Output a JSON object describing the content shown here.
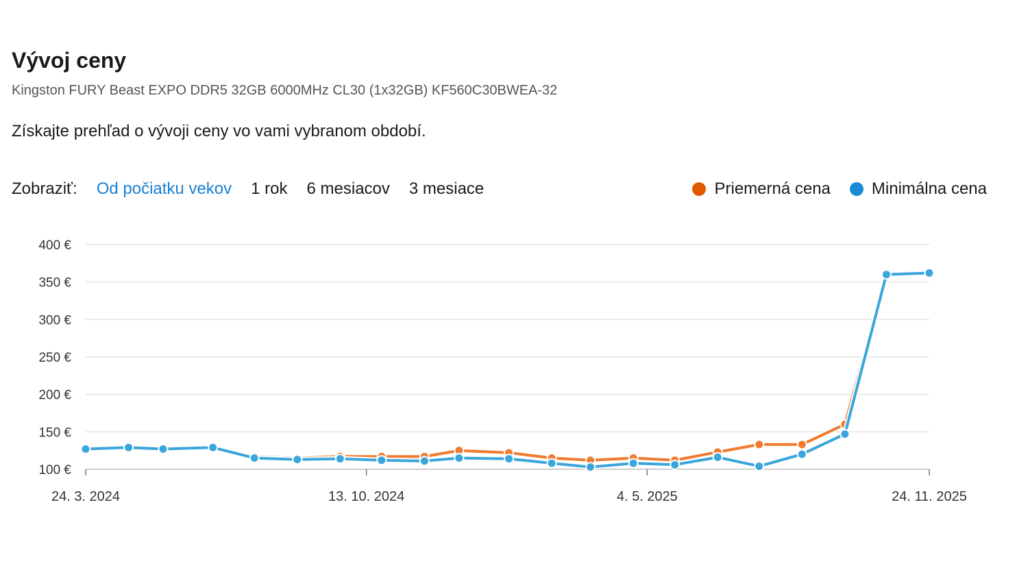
{
  "header": {
    "title": "Vývoj ceny",
    "product": "Kingston FURY Beast EXPO DDR5 32GB 6000MHz CL30 (1x32GB) KF560C30BWEA-32",
    "intro": "Získajte prehľad o vývoji ceny vo vami vybranom období."
  },
  "controls": {
    "label": "Zobraziť:",
    "options": [
      "Od počiatku vekov",
      "1 rok",
      "6 mesiacov",
      "3 mesiace"
    ],
    "active_index": 0
  },
  "legend": {
    "avg": "Priemerná cena",
    "min": "Minimálna cena"
  },
  "colors": {
    "avg": "#f07a2e",
    "min": "#3aa6db",
    "legend_avg": "#e05a00",
    "legend_min": "#1a8ad8",
    "active": "#1a7fd0"
  },
  "chart_data": {
    "type": "line",
    "x": [
      "2024-03-24",
      "2024-04-24",
      "2024-05-19",
      "2024-06-24",
      "2024-07-24",
      "2024-08-24",
      "2024-09-24",
      "2024-10-24",
      "2024-11-24",
      "2024-12-19",
      "2025-01-24",
      "2025-02-24",
      "2025-03-24",
      "2025-04-24",
      "2025-05-24",
      "2025-06-24",
      "2025-07-24",
      "2025-08-24",
      "2025-09-24",
      "2025-10-24",
      "2025-11-24"
    ],
    "series": [
      {
        "name": "Priemerná cena",
        "values": [
          127,
          128,
          127,
          129,
          117,
          115,
          117,
          117,
          117,
          125,
          122,
          115,
          112,
          115,
          112,
          123,
          133,
          133,
          160,
          360,
          362
        ]
      },
      {
        "name": "Minimálna cena",
        "values": [
          127,
          129,
          127,
          129,
          115,
          113,
          114,
          112,
          111,
          115,
          114,
          108,
          103,
          108,
          106,
          116,
          104,
          120,
          147,
          360,
          362
        ]
      }
    ],
    "xticks": [
      "24. 3. 2024",
      "13. 10. 2024",
      "4. 5. 2025",
      "24. 11. 2025"
    ],
    "yticks": [
      "100 €",
      "150 €",
      "200 €",
      "250 €",
      "300 €",
      "350 €",
      "400 €"
    ],
    "ytick_values": [
      100,
      150,
      200,
      250,
      300,
      350,
      400
    ],
    "ylim": [
      100,
      400
    ],
    "grid": true
  }
}
